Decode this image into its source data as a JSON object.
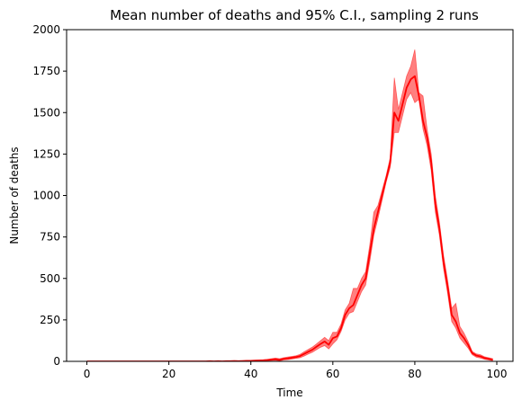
{
  "chart_data": {
    "type": "line",
    "title": "Mean number of deaths and 95% C.I., sampling 2 runs",
    "xlabel": "Time",
    "ylabel": "Number of deaths",
    "xlim": [
      -4.95,
      103.95
    ],
    "ylim": [
      0,
      2000
    ],
    "xticks": [
      0,
      20,
      40,
      60,
      80,
      100
    ],
    "yticks": [
      0,
      250,
      500,
      750,
      1000,
      1250,
      1500,
      1750,
      2000
    ],
    "grid": false,
    "series": [
      {
        "color": "#ff0000",
        "band_color": "#ff0000",
        "band_opacity": 0.5,
        "x": [
          0,
          1,
          2,
          3,
          4,
          5,
          6,
          7,
          8,
          9,
          10,
          11,
          12,
          13,
          14,
          15,
          16,
          17,
          18,
          19,
          20,
          21,
          22,
          23,
          24,
          25,
          26,
          27,
          28,
          29,
          30,
          31,
          32,
          33,
          34,
          35,
          36,
          37,
          38,
          39,
          40,
          41,
          42,
          43,
          44,
          45,
          46,
          47,
          48,
          49,
          50,
          51,
          52,
          53,
          54,
          55,
          56,
          57,
          58,
          59,
          60,
          61,
          62,
          63,
          64,
          65,
          66,
          67,
          68,
          69,
          70,
          71,
          72,
          73,
          74,
          75,
          76,
          77,
          78,
          79,
          80,
          81,
          82,
          83,
          84,
          85,
          86,
          87,
          88,
          89,
          90,
          91,
          92,
          93,
          94,
          95,
          96,
          97,
          98,
          99
        ],
        "mean": [
          0,
          0,
          0,
          0,
          0,
          0,
          0,
          0,
          0,
          0,
          0,
          0,
          0,
          0,
          0,
          0,
          0,
          0,
          0,
          0,
          0,
          0,
          0,
          0,
          0,
          0,
          0,
          0,
          0,
          0,
          1,
          0,
          1,
          0,
          1,
          1,
          2,
          1,
          2,
          3,
          3,
          4,
          5,
          6,
          8,
          10,
          12,
          9,
          15,
          18,
          22,
          26,
          32,
          45,
          58,
          70,
          88,
          105,
          120,
          100,
          140,
          150,
          200,
          280,
          320,
          340,
          400,
          460,
          500,
          650,
          800,
          900,
          1000,
          1100,
          1200,
          1500,
          1450,
          1550,
          1650,
          1700,
          1720,
          1600,
          1450,
          1350,
          1200,
          950,
          800,
          600,
          450,
          280,
          240,
          170,
          140,
          100,
          50,
          35,
          30,
          20,
          15,
          10
        ],
        "lower": [
          0,
          0,
          0,
          0,
          0,
          0,
          0,
          0,
          0,
          0,
          0,
          0,
          0,
          0,
          0,
          0,
          0,
          0,
          0,
          0,
          0,
          0,
          0,
          0,
          0,
          0,
          0,
          0,
          0,
          0,
          0,
          0,
          0,
          0,
          0,
          0,
          0,
          0,
          0,
          0,
          0,
          1,
          2,
          2,
          4,
          5,
          6,
          3,
          8,
          10,
          14,
          18,
          22,
          32,
          44,
          55,
          70,
          85,
          95,
          75,
          105,
          130,
          180,
          250,
          290,
          300,
          360,
          420,
          460,
          600,
          760,
          860,
          970,
          1080,
          1170,
          1380,
          1380,
          1480,
          1580,
          1620,
          1560,
          1580,
          1400,
          1300,
          1150,
          900,
          760,
          560,
          410,
          240,
          200,
          140,
          110,
          80,
          40,
          25,
          20,
          12,
          8,
          4
        ],
        "upper": [
          0,
          0,
          0,
          0,
          0,
          0,
          0,
          0,
          0,
          0,
          0,
          0,
          0,
          0,
          0,
          0,
          0,
          0,
          0,
          0,
          0,
          0,
          0,
          0,
          0,
          0,
          0,
          0,
          0,
          0,
          3,
          1,
          3,
          1,
          3,
          3,
          4,
          3,
          4,
          5,
          6,
          8,
          9,
          10,
          12,
          16,
          20,
          16,
          22,
          26,
          30,
          34,
          42,
          58,
          72,
          86,
          105,
          125,
          145,
          125,
          175,
          175,
          225,
          310,
          350,
          440,
          440,
          500,
          540,
          700,
          900,
          940,
          1030,
          1120,
          1230,
          1710,
          1520,
          1620,
          1720,
          1780,
          1880,
          1620,
          1600,
          1400,
          1250,
          1000,
          840,
          640,
          490,
          320,
          350,
          210,
          170,
          120,
          60,
          45,
          40,
          28,
          22,
          16
        ]
      }
    ]
  }
}
